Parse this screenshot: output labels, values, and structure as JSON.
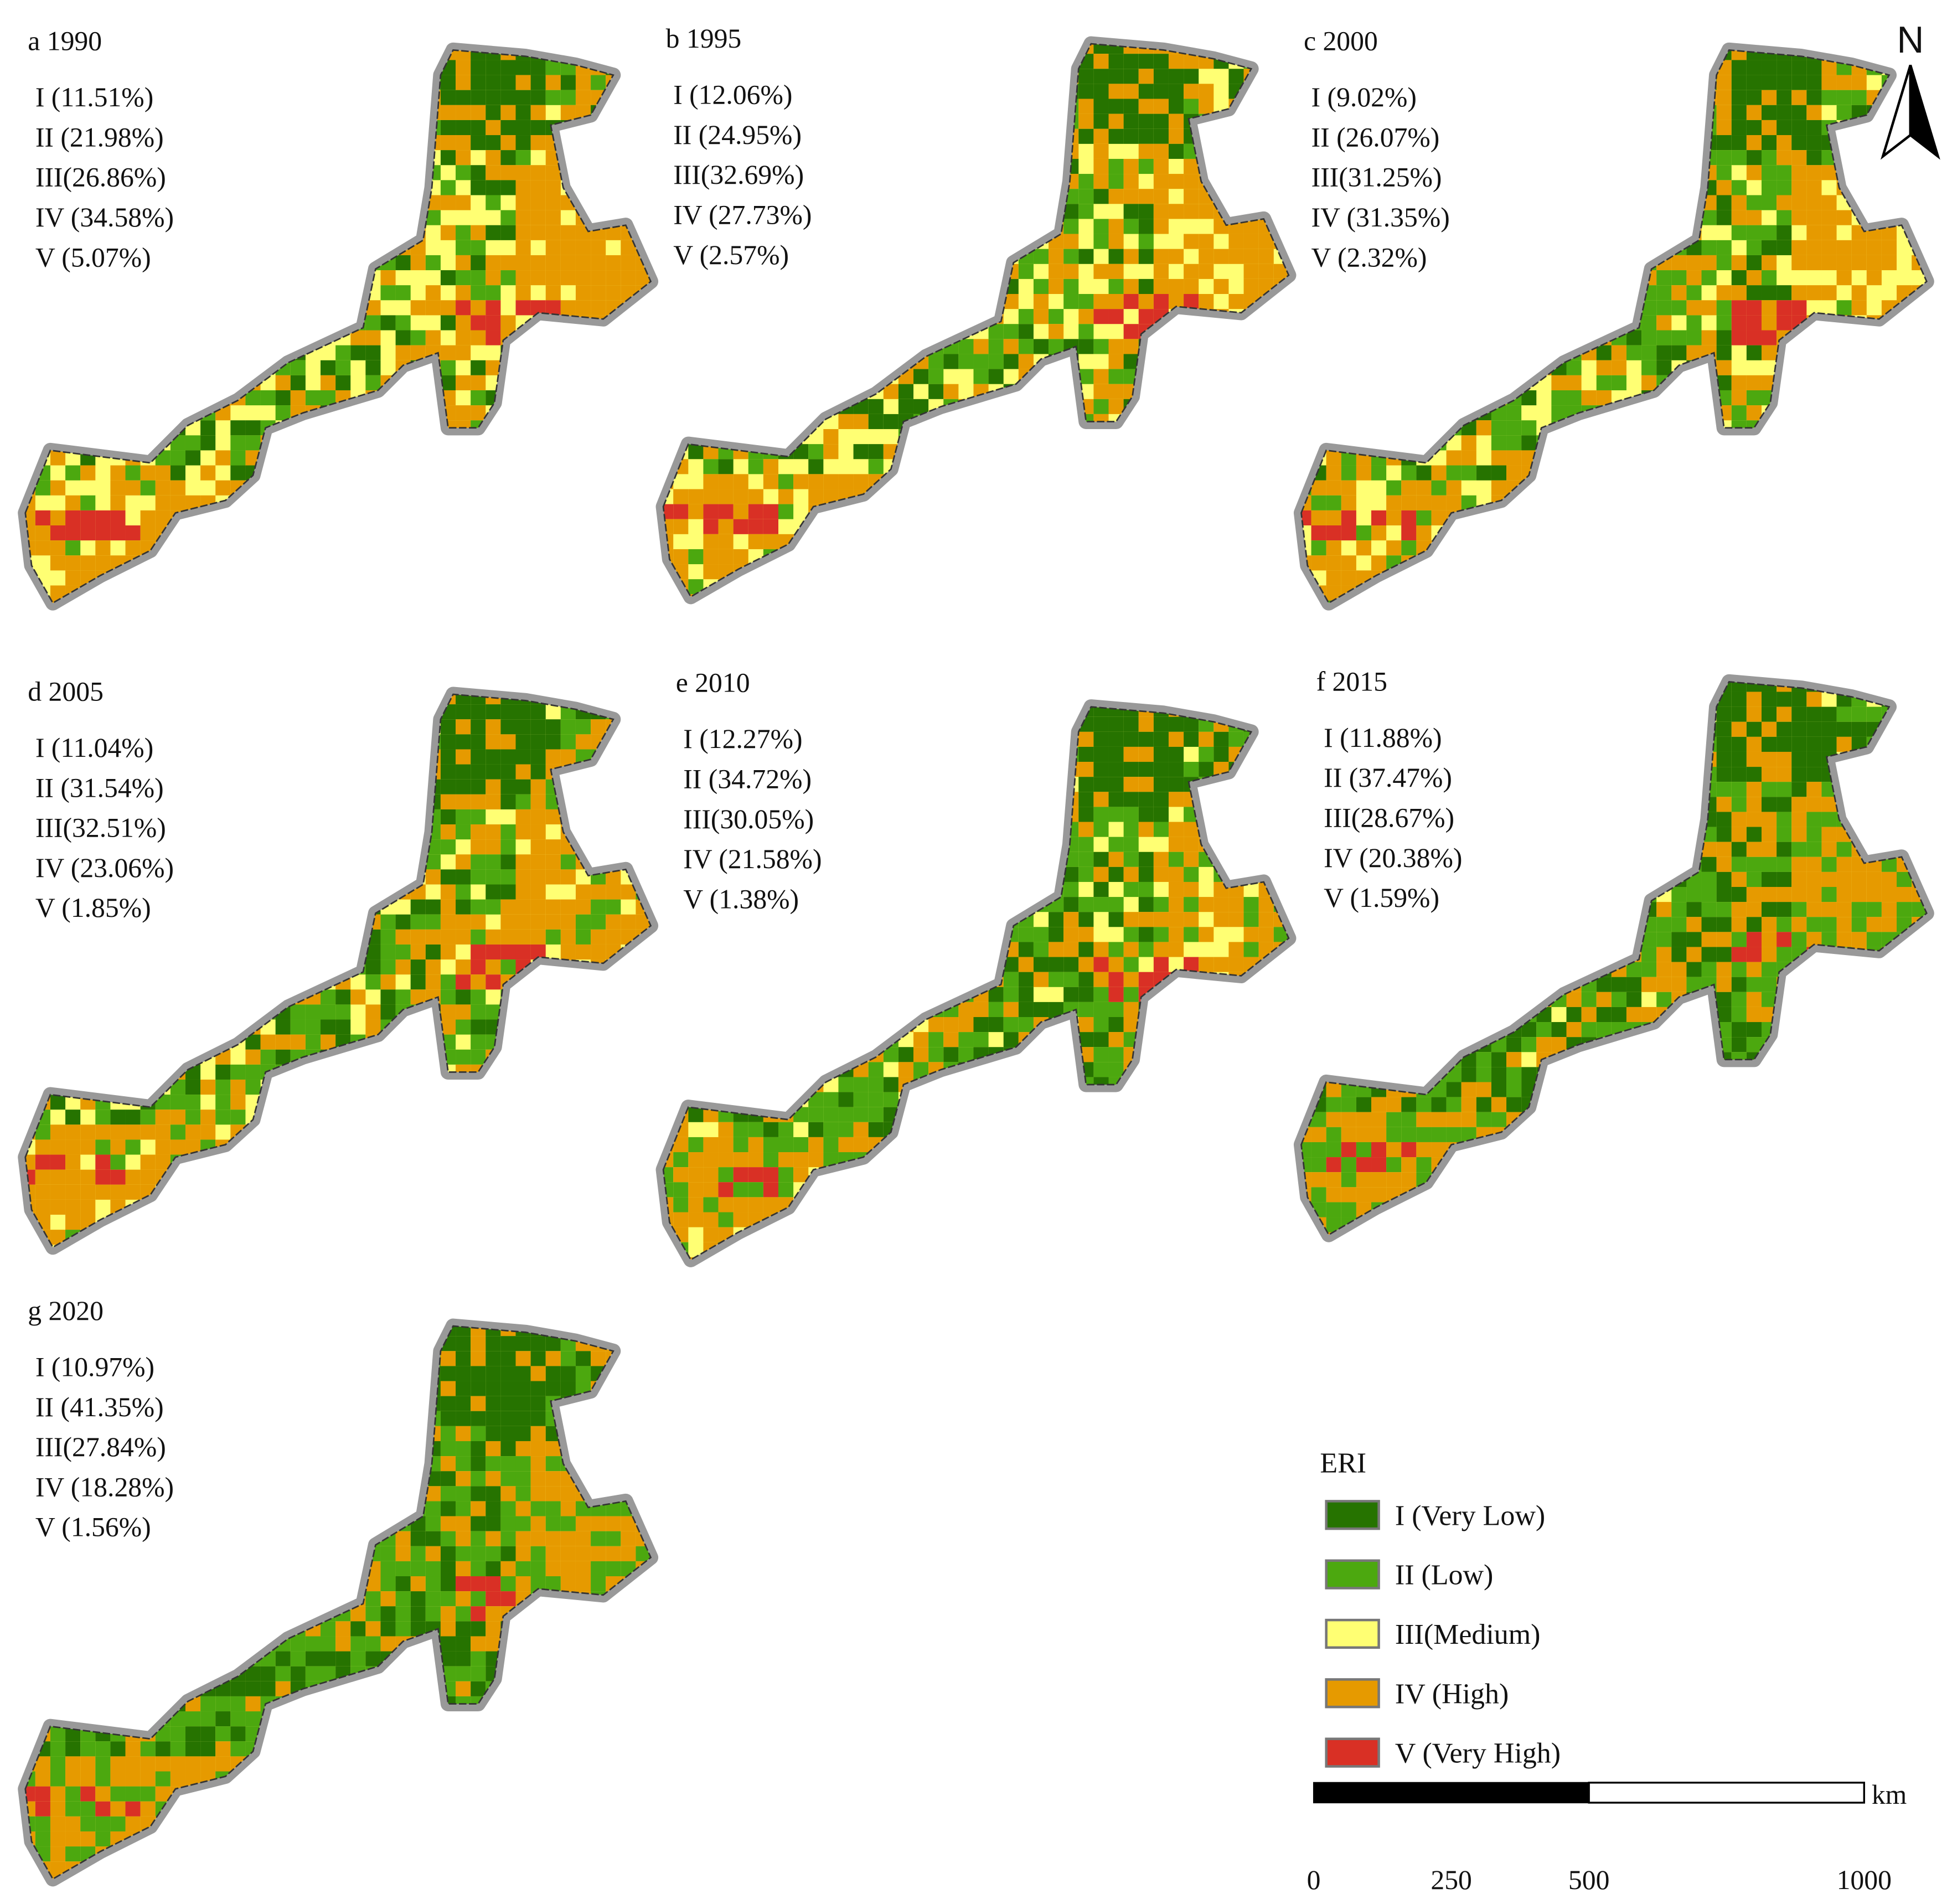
{
  "panels": [
    {
      "label": "a 1990",
      "classes": [
        "I (11.51%)",
        "II (21.98%)",
        "III(26.86%)",
        "IV (34.58%)",
        "V (5.07%)"
      ]
    },
    {
      "label": "b 1995",
      "classes": [
        "I (12.06%)",
        "II (24.95%)",
        "III(32.69%)",
        "IV (27.73%)",
        "V (2.57%)"
      ]
    },
    {
      "label": "c 2000",
      "classes": [
        "I (9.02%)",
        "II (26.07%)",
        "III(31.25%)",
        "IV (31.35%)",
        "V (2.32%)"
      ]
    },
    {
      "label": "d 2005",
      "classes": [
        "I (11.04%)",
        "II (31.54%)",
        "III(32.51%)",
        "IV (23.06%)",
        "V (1.85%)"
      ]
    },
    {
      "label": "e 2010",
      "classes": [
        "I (12.27%)",
        "II (34.72%)",
        "III(30.05%)",
        "IV (21.58%)",
        "V (1.38%)"
      ]
    },
    {
      "label": "f 2015",
      "classes": [
        "I (11.88%)",
        "II (37.47%)",
        "III(28.67%)",
        "IV (20.38%)",
        "V (1.59%)"
      ]
    },
    {
      "label": "g 2020",
      "classes": [
        "I (10.97%)",
        "II (41.35%)",
        "III(27.84%)",
        "IV (18.28%)",
        "V (1.56%)"
      ]
    }
  ],
  "legend": {
    "title": "ERI",
    "items": [
      {
        "label": "I (Very Low)",
        "color": "#267300"
      },
      {
        "label": "II (Low)",
        "color": "#4ca80f"
      },
      {
        "label": "III(Medium)",
        "color": "#ffff73"
      },
      {
        "label": "IV (High)",
        "color": "#e69a00"
      },
      {
        "label": "V (Very High)",
        "color": "#d93025"
      }
    ]
  },
  "scale_bar": {
    "ticks": [
      0,
      250,
      500,
      1000
    ],
    "unit": "km"
  },
  "north_arrow": "N"
}
